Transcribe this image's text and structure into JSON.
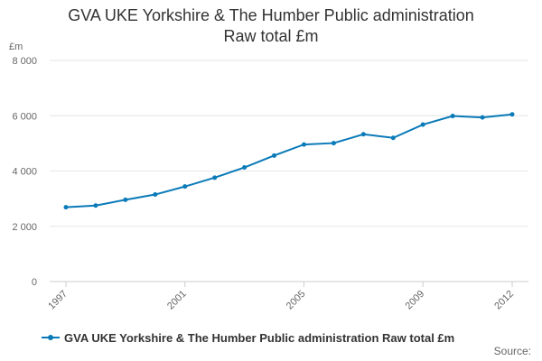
{
  "chart_data": {
    "type": "line",
    "title_line1": "GVA UKE Yorkshire & The Humber Public administration",
    "title_line2": "Raw total £m",
    "ylabel": "£m",
    "x": [
      1997,
      1998,
      1999,
      2000,
      2001,
      2002,
      2003,
      2004,
      2005,
      2006,
      2007,
      2008,
      2009,
      2010,
      2011,
      2012
    ],
    "x_tick_labels": [
      "1997",
      "2001",
      "2005",
      "2009",
      "2012"
    ],
    "x_tick_values": [
      1997,
      2001,
      2005,
      2009,
      2012
    ],
    "y_ticks": [
      0,
      2000,
      4000,
      6000,
      8000
    ],
    "y_tick_labels": [
      "0",
      "2 000",
      "4 000",
      "6 000",
      "8 000"
    ],
    "ylim": [
      0,
      8000
    ],
    "grid": true,
    "legend_position": "bottom-left",
    "series": [
      {
        "name": "GVA UKE Yorkshire & The Humber Public administration Raw total £m",
        "color": "#0a7ab8",
        "values": [
          2690,
          2750,
          2960,
          3150,
          3440,
          3760,
          4130,
          4560,
          4960,
          5010,
          5330,
          5200,
          5680,
          5990,
          5940,
          6050
        ]
      }
    ]
  },
  "source_label": "Source:"
}
